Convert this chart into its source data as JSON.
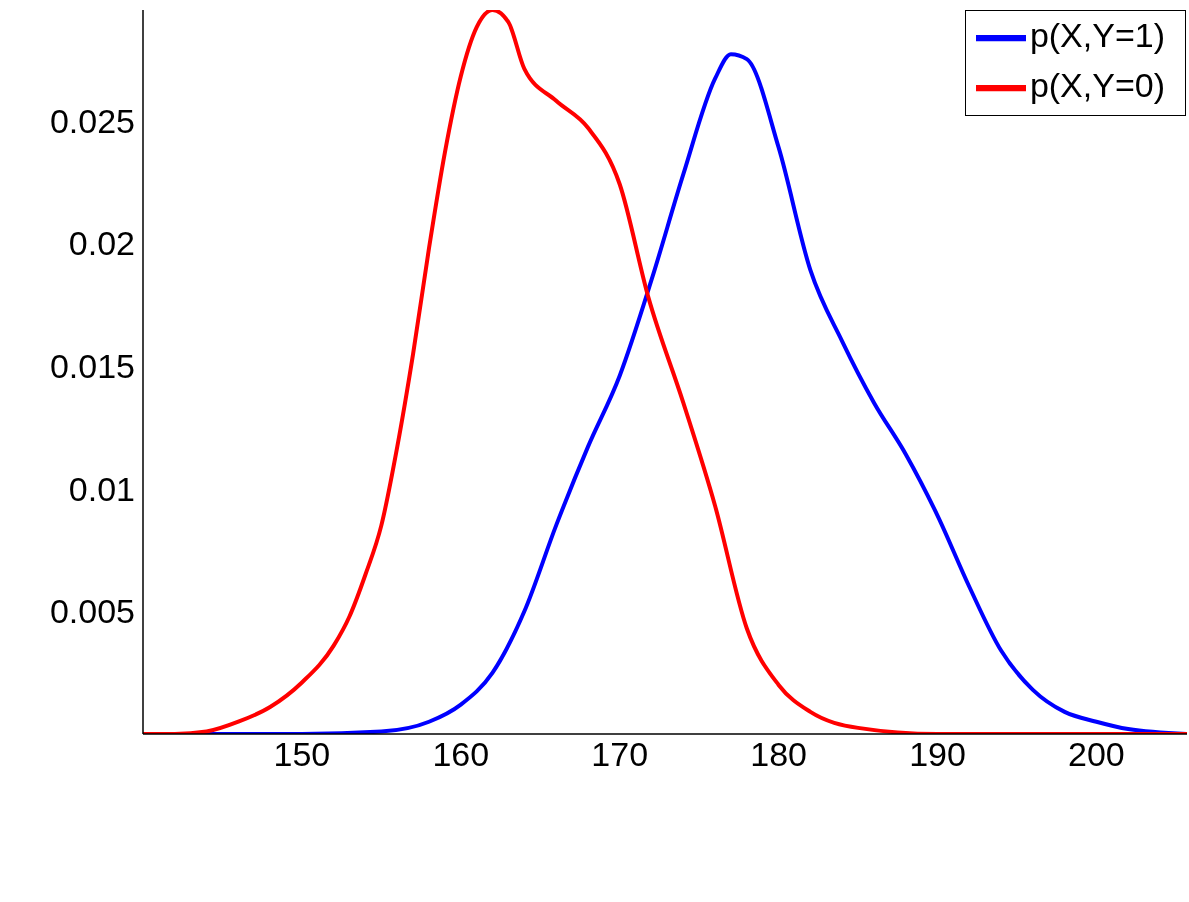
{
  "chart_data": {
    "type": "line",
    "xlim": [
      140,
      205.7
    ],
    "ylim": [
      0,
      0.0295
    ],
    "xticks": [
      150,
      160,
      170,
      180,
      190,
      200
    ],
    "yticks": [
      0.005,
      0.01,
      0.015,
      0.02,
      0.025
    ],
    "grid": false,
    "legend": "top right",
    "marker": "none",
    "line_style": "solid",
    "series": [
      {
        "name": "p(X,Y=1)",
        "color": "#0000ff",
        "x": [
          140,
          150,
          155,
          158,
          160,
          162,
          164,
          166,
          168,
          170,
          172,
          174,
          176,
          177,
          178,
          180,
          182,
          184,
          186,
          188,
          190,
          192,
          194,
          196,
          198,
          200,
          202,
          205.7
        ],
        "values": [
          0,
          0,
          0.0001,
          0.0005,
          0.0012,
          0.0025,
          0.005,
          0.0085,
          0.0117,
          0.0146,
          0.0185,
          0.0228,
          0.0267,
          0.0277,
          0.0275,
          0.0239,
          0.0189,
          0.016,
          0.0135,
          0.0114,
          0.0089,
          0.006,
          0.0034,
          0.0018,
          0.0009,
          0.0005,
          0.0002,
          0
        ]
      },
      {
        "name": "p(X,Y=0)",
        "color": "#ff0000",
        "x": [
          140,
          142,
          144,
          146,
          148,
          150,
          152,
          153,
          154,
          155,
          156,
          157,
          158,
          159,
          160,
          161,
          162,
          163,
          164,
          166,
          168,
          170,
          171.8,
          174,
          176,
          178,
          180,
          182,
          185,
          190,
          205.7
        ],
        "values": [
          0,
          0,
          0.0001,
          0.0005,
          0.0011,
          0.0021,
          0.0036,
          0.0048,
          0.0065,
          0.0085,
          0.0117,
          0.0155,
          0.0198,
          0.0237,
          0.0268,
          0.0288,
          0.0295,
          0.029,
          0.0271,
          0.0258,
          0.0247,
          0.0224,
          0.0178,
          0.0135,
          0.0093,
          0.0043,
          0.002,
          0.0009,
          0.00025,
          0,
          0
        ]
      }
    ]
  }
}
